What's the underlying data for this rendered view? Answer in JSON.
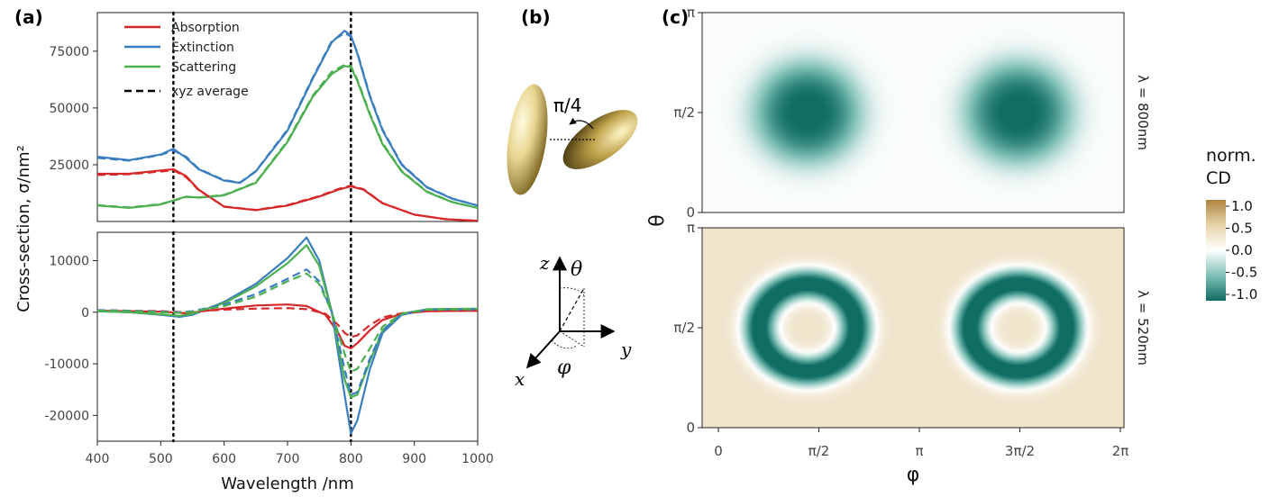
{
  "panels": {
    "a": "(a)",
    "b": "(b)",
    "c": "(c)"
  },
  "chart_data": [
    {
      "type": "line",
      "panel": "a-top",
      "xlim": [
        400,
        1000
      ],
      "ylim": [
        0,
        92000
      ],
      "yticks": [
        25000,
        50000,
        75000
      ],
      "ytick_labels": [
        "25000",
        "50000",
        "75000"
      ],
      "vlines": [
        520,
        800
      ],
      "legend": {
        "placement": "top-left",
        "entries": [
          "Absorption",
          "Extinction",
          "Scattering",
          "xyz average"
        ]
      },
      "series": [
        {
          "name": "Absorption",
          "color": "#d62728",
          "style": "solid",
          "x": [
            400,
            450,
            500,
            520,
            540,
            560,
            600,
            650,
            700,
            750,
            780,
            800,
            820,
            850,
            900,
            950,
            1000
          ],
          "y": [
            21000,
            21000,
            22500,
            23000,
            20000,
            14000,
            6500,
            5000,
            7000,
            11000,
            14000,
            15500,
            14000,
            8000,
            3000,
            1000,
            300
          ]
        },
        {
          "name": "Extinction",
          "color": "#3a7ebf",
          "style": "solid",
          "x": [
            400,
            450,
            500,
            520,
            540,
            560,
            600,
            625,
            650,
            700,
            740,
            770,
            790,
            800,
            810,
            830,
            850,
            880,
            920,
            960,
            1000
          ],
          "y": [
            28500,
            27000,
            29500,
            32000,
            28000,
            23000,
            18000,
            17000,
            22000,
            40000,
            63000,
            79000,
            84000,
            82000,
            74000,
            55000,
            40000,
            25000,
            15000,
            10000,
            7000
          ]
        },
        {
          "name": "Scattering",
          "color": "#4caf50",
          "style": "solid",
          "x": [
            400,
            450,
            500,
            540,
            560,
            600,
            650,
            700,
            740,
            770,
            790,
            800,
            810,
            830,
            850,
            880,
            920,
            960,
            1000
          ],
          "y": [
            7000,
            6000,
            7500,
            11000,
            10500,
            11500,
            17000,
            35000,
            55000,
            65000,
            68500,
            68000,
            62000,
            47000,
            34000,
            22000,
            13000,
            8500,
            6000
          ]
        },
        {
          "name": "Absorption (xyz average)",
          "color": "#d62728",
          "style": "dashed",
          "x": [
            400,
            450,
            500,
            520,
            540,
            560,
            600,
            650,
            700,
            750,
            780,
            800,
            820,
            850,
            900,
            950,
            1000
          ],
          "y": [
            20500,
            20800,
            22000,
            22600,
            19500,
            13800,
            6600,
            5100,
            7200,
            11200,
            14300,
            15800,
            14200,
            8100,
            3000,
            1000,
            300
          ]
        },
        {
          "name": "Extinction (xyz average)",
          "color": "#3a7ebf",
          "style": "dashed",
          "x": [
            400,
            450,
            500,
            520,
            540,
            560,
            600,
            625,
            650,
            700,
            740,
            770,
            790,
            800,
            810,
            830,
            850,
            880,
            920,
            960,
            1000
          ],
          "y": [
            28000,
            26800,
            29300,
            31300,
            28500,
            23200,
            18200,
            17200,
            22200,
            40500,
            63500,
            79500,
            83000,
            81500,
            74500,
            55500,
            40500,
            25300,
            15200,
            10100,
            7000
          ]
        },
        {
          "name": "Scattering (xyz average)",
          "color": "#4caf50",
          "style": "dashed",
          "x": [
            400,
            450,
            500,
            540,
            560,
            600,
            650,
            700,
            740,
            770,
            790,
            800,
            810,
            830,
            850,
            880,
            920,
            960,
            1000
          ],
          "y": [
            7200,
            6200,
            7700,
            10800,
            10600,
            11700,
            17200,
            35500,
            55500,
            66000,
            69000,
            68500,
            62500,
            47500,
            34500,
            22300,
            13200,
            8600,
            6000
          ]
        }
      ]
    },
    {
      "type": "line",
      "panel": "a-bottom",
      "xlim": [
        400,
        1000
      ],
      "ylim": [
        -25000,
        15500
      ],
      "yticks": [
        -20000,
        -10000,
        0,
        10000
      ],
      "ytick_labels": [
        "-20000",
        "-10000",
        "0",
        "10000"
      ],
      "xticks": [
        400,
        500,
        600,
        700,
        800,
        900,
        1000
      ],
      "xtick_labels": [
        "400",
        "500",
        "600",
        "700",
        "800",
        "900",
        "1000"
      ],
      "xlabel": "Wavelength /nm",
      "ylabel": "Cross-section, σ/nm²",
      "vlines": [
        520,
        800
      ],
      "series": [
        {
          "name": "Absorption",
          "color": "#d62728",
          "style": "solid",
          "x": [
            400,
            450,
            500,
            540,
            560,
            600,
            650,
            700,
            730,
            760,
            780,
            790,
            800,
            810,
            830,
            850,
            880,
            920,
            1000
          ],
          "y": [
            300,
            200,
            100,
            -200,
            100,
            700,
            1300,
            1500,
            1200,
            -500,
            -4000,
            -6500,
            -7000,
            -6000,
            -3500,
            -1500,
            -300,
            200,
            300
          ]
        },
        {
          "name": "Extinction",
          "color": "#3a7ebf",
          "style": "solid",
          "x": [
            400,
            450,
            500,
            530,
            550,
            600,
            650,
            700,
            730,
            750,
            770,
            790,
            800,
            810,
            830,
            850,
            880,
            920,
            1000
          ],
          "y": [
            200,
            0,
            -500,
            -900,
            -500,
            2000,
            5500,
            10500,
            14500,
            10000,
            0,
            -16000,
            -23500,
            -21000,
            -11000,
            -4000,
            -500,
            500,
            500
          ]
        },
        {
          "name": "Scattering",
          "color": "#4caf50",
          "style": "solid",
          "x": [
            400,
            450,
            500,
            530,
            550,
            600,
            650,
            700,
            730,
            750,
            770,
            790,
            800,
            810,
            830,
            850,
            880,
            920,
            1000
          ],
          "y": [
            200,
            0,
            -400,
            -700,
            -300,
            1800,
            5000,
            9500,
            13000,
            9000,
            0,
            -13000,
            -16500,
            -16000,
            -9500,
            -3500,
            -300,
            600,
            700
          ]
        },
        {
          "name": "Absorption (xyz average)",
          "color": "#d62728",
          "style": "dashed",
          "x": [
            400,
            450,
            500,
            540,
            560,
            600,
            650,
            700,
            730,
            760,
            780,
            790,
            800,
            810,
            830,
            850,
            880,
            920,
            1000
          ],
          "y": [
            400,
            300,
            200,
            0,
            200,
            500,
            700,
            800,
            600,
            -300,
            -2500,
            -4000,
            -4800,
            -4500,
            -2500,
            -1000,
            -200,
            200,
            300
          ]
        },
        {
          "name": "Extinction (xyz average)",
          "color": "#3a7ebf",
          "style": "dashed",
          "x": [
            400,
            450,
            500,
            530,
            550,
            600,
            650,
            700,
            730,
            750,
            770,
            790,
            800,
            810,
            830,
            850,
            880,
            920,
            1000
          ],
          "y": [
            400,
            300,
            100,
            0,
            200,
            1500,
            3500,
            6500,
            8300,
            6000,
            0,
            -11000,
            -16000,
            -15500,
            -9000,
            -3500,
            -400,
            500,
            600
          ]
        },
        {
          "name": "Scattering (xyz average)",
          "color": "#4caf50",
          "style": "dashed",
          "x": [
            400,
            450,
            500,
            530,
            550,
            600,
            650,
            700,
            730,
            750,
            770,
            790,
            800,
            810,
            830,
            850,
            880,
            920,
            1000
          ],
          "y": [
            300,
            200,
            0,
            -100,
            100,
            1200,
            3000,
            6000,
            7500,
            5500,
            0,
            -8000,
            -11500,
            -11000,
            -7000,
            -2800,
            -300,
            500,
            600
          ]
        }
      ]
    },
    {
      "type": "heatmap",
      "panel": "c",
      "subplots": [
        {
          "label": "λ = 800nm",
          "description": "two lobes centred at (π/2, π/2) and (3π/2, π/2), min ≈ -1.0, background ≈ 0"
        },
        {
          "label": "λ = 520nm",
          "description": "two rings centred at (π/2, π/2) and (3π/2, π/2), ring ≈ -1.0, centres and edges slightly positive"
        }
      ],
      "xlabel": "φ",
      "ylabel": "θ",
      "xtick_labels": [
        "0",
        "π/2",
        "π",
        "3π/2",
        "2π"
      ],
      "ytick_labels": [
        "0",
        "π/2",
        "π"
      ],
      "xlim": [
        0,
        6.2832
      ],
      "ylim": [
        0,
        3.1416
      ],
      "colorbar": {
        "title_line1": "norm.",
        "title_line2": "CD",
        "ticks": [
          "1.0",
          "0.5",
          "0.0",
          "-0.5",
          "-1.0"
        ],
        "range": [
          -1.0,
          1.0
        ],
        "colors": [
          "#0f6d64",
          "#ffffff",
          "#b8914a"
        ]
      }
    }
  ],
  "diagram": {
    "angle_label": "π/4",
    "axes": {
      "z": "z",
      "theta": "θ",
      "y": "y",
      "x": "x",
      "phi": "φ"
    }
  }
}
